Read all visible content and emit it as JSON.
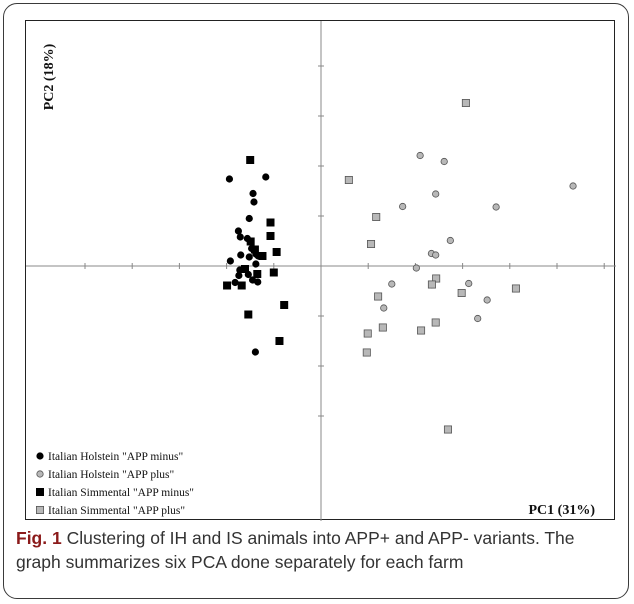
{
  "chart_data": {
    "type": "scatter",
    "xlabel": "PC1 (31%)",
    "ylabel": "PC2 (18%)",
    "xlim": [
      -6.25,
      6.25
    ],
    "ylim": [
      -5.1,
      4.9
    ],
    "x_ticks": [
      -5,
      -4,
      -3,
      -2,
      -1,
      0,
      1,
      2,
      3,
      4,
      5,
      6
    ],
    "y_ticks": [
      -3,
      -2,
      -1,
      1,
      2,
      3,
      4
    ],
    "legend_position": "bottom-left",
    "series": [
      {
        "name": "Italian Holstein \"APP minus\"",
        "marker": "circle",
        "fill": "#000000",
        "stroke": "#000000",
        "points": [
          [
            -1.94,
            1.74
          ],
          [
            -1.17,
            1.78
          ],
          [
            -1.44,
            1.45
          ],
          [
            -1.42,
            1.28
          ],
          [
            -1.52,
            0.95
          ],
          [
            -1.75,
            0.7
          ],
          [
            -1.71,
            0.58
          ],
          [
            -1.56,
            0.55
          ],
          [
            -1.47,
            0.35
          ],
          [
            -1.38,
            0.24
          ],
          [
            -1.33,
            0.2
          ],
          [
            -1.52,
            0.18
          ],
          [
            -1.7,
            0.22
          ],
          [
            -1.92,
            0.1
          ],
          [
            -1.38,
            0.04
          ],
          [
            -1.72,
            -0.08
          ],
          [
            -1.74,
            -0.19
          ],
          [
            -1.54,
            -0.17
          ],
          [
            -1.45,
            -0.28
          ],
          [
            -1.82,
            -0.33
          ],
          [
            -1.34,
            -0.32
          ],
          [
            -1.39,
            -1.72
          ]
        ]
      },
      {
        "name": "Italian Holstein \"APP plus\"",
        "marker": "circle",
        "fill": "#b8b8b8",
        "stroke": "#555555",
        "points": [
          [
            2.1,
            2.21
          ],
          [
            2.61,
            2.09
          ],
          [
            2.43,
            1.44
          ],
          [
            5.34,
            1.6
          ],
          [
            1.73,
            1.19
          ],
          [
            3.71,
            1.18
          ],
          [
            2.74,
            0.51
          ],
          [
            2.34,
            0.25
          ],
          [
            2.43,
            0.22
          ],
          [
            2.02,
            -0.04
          ],
          [
            1.5,
            -0.36
          ],
          [
            2.35,
            -0.38
          ],
          [
            3.13,
            -0.35
          ],
          [
            3.52,
            -0.68
          ],
          [
            1.33,
            -0.84
          ],
          [
            3.32,
            -1.05
          ]
        ]
      },
      {
        "name": "Italian Simmental \"APP minus\"",
        "marker": "square",
        "fill": "#000000",
        "stroke": "#000000",
        "points": [
          [
            -1.5,
            2.12
          ],
          [
            -1.07,
            0.87
          ],
          [
            -1.07,
            0.6
          ],
          [
            -1.49,
            0.49
          ],
          [
            -1.4,
            0.33
          ],
          [
            -0.94,
            0.28
          ],
          [
            -1.24,
            0.2
          ],
          [
            -1.61,
            -0.06
          ],
          [
            -1.35,
            -0.16
          ],
          [
            -1.0,
            -0.13
          ],
          [
            -1.99,
            -0.39
          ],
          [
            -1.68,
            -0.39
          ],
          [
            -0.78,
            -0.78
          ],
          [
            -1.54,
            -0.97
          ],
          [
            -0.88,
            -1.5
          ]
        ]
      },
      {
        "name": "Italian Simmental \"APP plus\"",
        "marker": "square",
        "fill": "#b8b8b8",
        "stroke": "#555555",
        "points": [
          [
            3.07,
            3.26
          ],
          [
            0.59,
            1.72
          ],
          [
            1.17,
            0.98
          ],
          [
            1.06,
            0.44
          ],
          [
            2.44,
            -0.25
          ],
          [
            2.35,
            -0.37
          ],
          [
            4.13,
            -0.45
          ],
          [
            2.98,
            -0.54
          ],
          [
            1.21,
            -0.61
          ],
          [
            1.31,
            -1.23
          ],
          [
            2.43,
            -1.13
          ],
          [
            2.12,
            -1.29
          ],
          [
            0.99,
            -1.35
          ],
          [
            0.97,
            -1.73
          ],
          [
            2.69,
            -3.27
          ]
        ]
      }
    ]
  },
  "caption": {
    "label": "Fig. 1",
    "text": " Clustering of IH and IS animals into APP+ and APP- variants. The graph summarizes six PCA done separately for each farm"
  }
}
